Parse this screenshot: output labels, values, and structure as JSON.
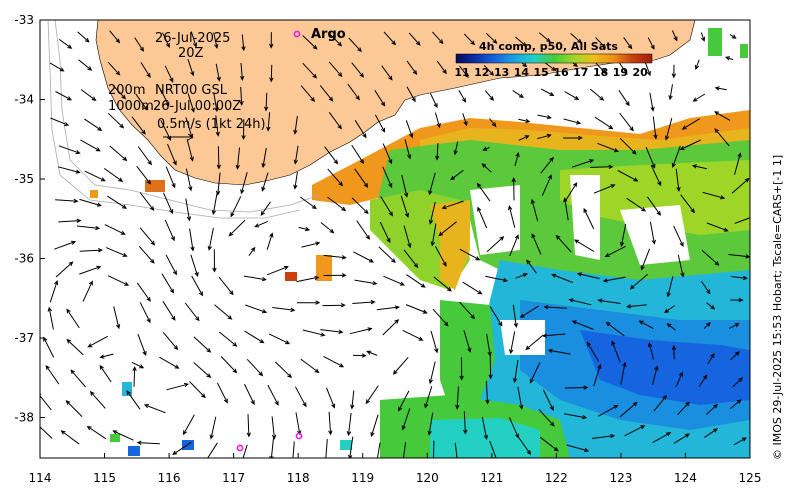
{
  "map": {
    "date": "26-Jul-2025",
    "time": "20Z",
    "argo_label": "Argo",
    "product_line1": "NRT00 GSL",
    "product_line2": "26-Jul 00:00Z",
    "depth_200": "200m",
    "depth_1000": "1000m",
    "scale_vector": "0.5m/s (1kt 24h)",
    "credit": "© IMOS 29-Jul-2025 15:53 Hobart; Tscale=CARS+[-1 1]",
    "colorbar": {
      "title": "4h comp, p50, All Sats",
      "ticks": [
        "11",
        "12",
        "13",
        "14",
        "15",
        "16",
        "17",
        "18",
        "19",
        "20"
      ],
      "colors": [
        "#08085c",
        "#0a2fa8",
        "#1565e0",
        "#1aa3e6",
        "#22d1c2",
        "#46c93a",
        "#9ed628",
        "#e8c21a",
        "#f0901a",
        "#c8400e",
        "#a01e0a"
      ]
    },
    "x_ticks": [
      "114",
      "115",
      "116",
      "117",
      "118",
      "119",
      "120",
      "121",
      "122",
      "123",
      "124",
      "125"
    ],
    "y_ticks": [
      "-33",
      "-34",
      "-35",
      "-36",
      "-37",
      "-38"
    ],
    "colors": {
      "land": "#fcc896",
      "argo": "#e81ee8"
    }
  }
}
